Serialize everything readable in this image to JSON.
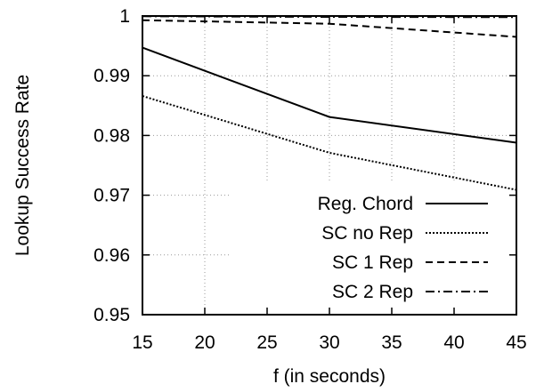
{
  "chart_data": {
    "type": "line",
    "xlabel": "f (in seconds)",
    "ylabel": "Lookup Success Rate",
    "xlim": [
      15,
      45
    ],
    "ylim": [
      0.95,
      1.0
    ],
    "x_ticks": [
      "15",
      "20",
      "25",
      "30",
      "35",
      "40",
      "45"
    ],
    "y_ticks": [
      "0.95",
      "0.96",
      "0.97",
      "0.98",
      "0.99",
      "1"
    ],
    "grid": true,
    "legend_position": "bottom-right",
    "series": [
      {
        "name": "Reg. Chord",
        "dash": "solid",
        "x": [
          15,
          30,
          45
        ],
        "y": [
          0.9947,
          0.9831,
          0.9788
        ]
      },
      {
        "name": "SC no Rep",
        "dash": "dotted",
        "x": [
          15,
          30,
          45
        ],
        "y": [
          0.9866,
          0.9771,
          0.9709
        ]
      },
      {
        "name": "SC 1 Rep",
        "dash": "dashed",
        "x": [
          15,
          30,
          45
        ],
        "y": [
          0.9993,
          0.9987,
          0.9965
        ]
      },
      {
        "name": "SC 2 Rep",
        "dash": "dashdot",
        "x": [
          15,
          30,
          45
        ],
        "y": [
          0.99995,
          0.99985,
          0.9998
        ]
      }
    ]
  }
}
